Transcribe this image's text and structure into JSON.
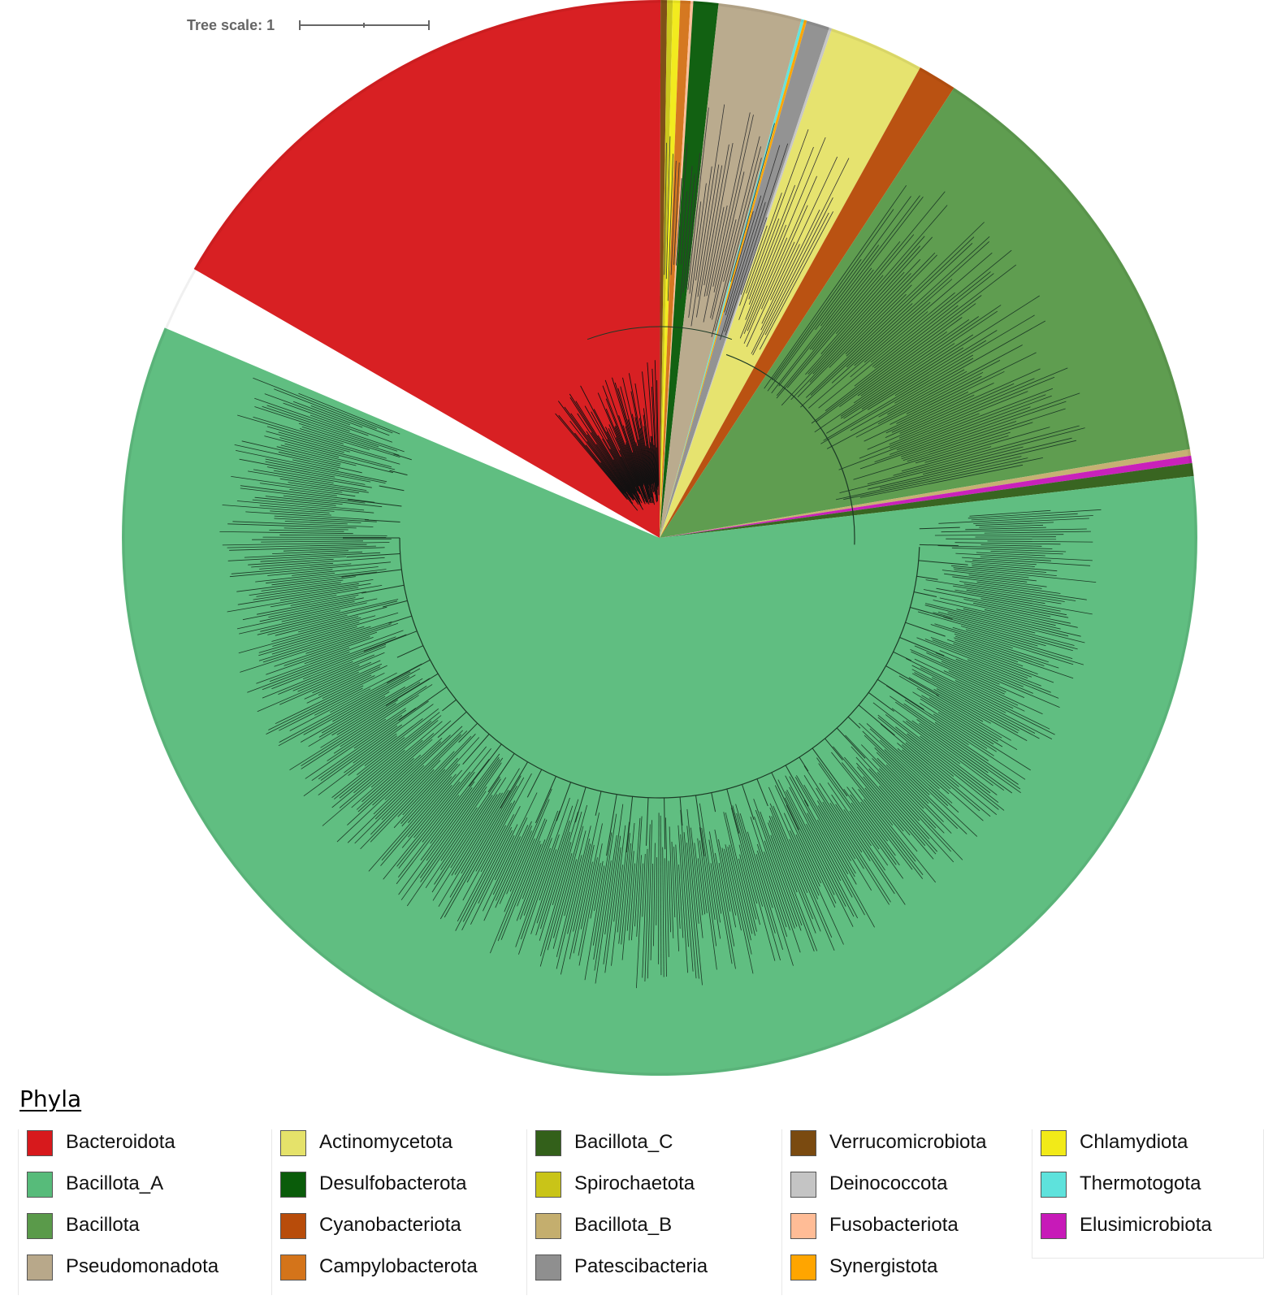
{
  "figure": {
    "tree_scale_label": "Tree scale: 1",
    "branch_color": "#1c3a26"
  },
  "legend": {
    "title": "Phyla",
    "columns": [
      [
        {
          "label": "Bacteroidota",
          "color": "#d7191c"
        },
        {
          "label": "Bacillota_A",
          "color": "#57bb7a"
        },
        {
          "label": "Bacillota",
          "color": "#5a9a4a"
        },
        {
          "label": "Pseudomonadota",
          "color": "#b8a88a"
        }
      ],
      [
        {
          "label": "Actinomycetota",
          "color": "#e5e26a"
        },
        {
          "label": "Desulfobacterota",
          "color": "#0a5c0a"
        },
        {
          "label": "Cyanobacteriota",
          "color": "#b84c0a"
        },
        {
          "label": "Campylobacterota",
          "color": "#d4741a"
        }
      ],
      [
        {
          "label": "Bacillota_C",
          "color": "#33601a"
        },
        {
          "label": "Spirochaetota",
          "color": "#c9c418"
        },
        {
          "label": "Bacillota_B",
          "color": "#c4ae6e"
        },
        {
          "label": "Patescibacteria",
          "color": "#8f8f8f"
        }
      ],
      [
        {
          "label": "Verrucomicrobiota",
          "color": "#7a4a10"
        },
        {
          "label": "Deinococcota",
          "color": "#c4c4c4"
        },
        {
          "label": "Fusobacteriota",
          "color": "#ffbc96"
        },
        {
          "label": "Synergistota",
          "color": "#ffa500"
        }
      ],
      [
        {
          "label": "Chlamydiota",
          "color": "#f2ea18"
        },
        {
          "label": "Thermotogota",
          "color": "#5ee2dc"
        },
        {
          "label": "Elusimicrobiota",
          "color": "#c71ab8"
        }
      ]
    ]
  }
}
